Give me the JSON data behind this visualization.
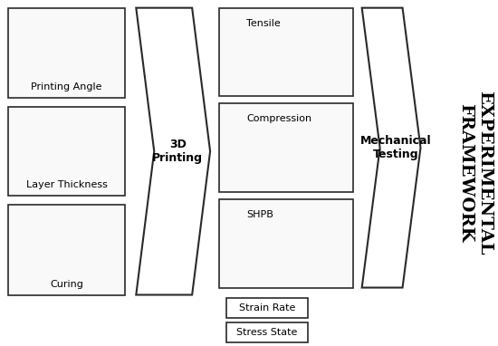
{
  "bg_color": "#ffffff",
  "border_color": "#2a2a2a",
  "text_color": "#000000",
  "fig_w": 5.5,
  "fig_h": 3.82,
  "dpi": 100,
  "left_boxes": [
    {
      "label": "Printing Angle"
    },
    {
      "label": "Layer Thickness"
    },
    {
      "label": "Curing"
    }
  ],
  "mid_boxes": [
    {
      "label": "Tensile"
    },
    {
      "label": "Compression"
    },
    {
      "label": "SHPB"
    }
  ],
  "small_boxes": [
    "Strain Rate",
    "Stress State"
  ],
  "arrow1_label": "3D\nPrinting",
  "arrow2_label": "Mechanical\nTesting",
  "right_label": "EXPERIMENTAL\nFRAMEWORK"
}
